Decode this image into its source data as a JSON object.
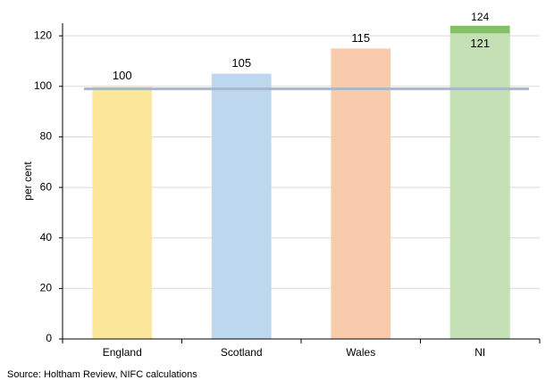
{
  "chart_data": {
    "type": "bar",
    "categories": [
      "England",
      "Scotland",
      "Wales",
      "NI"
    ],
    "values": [
      100,
      105,
      115,
      121
    ],
    "colors": [
      "#fde79b",
      "#bdd7ee",
      "#f8cbad",
      "#c5e0b4"
    ],
    "overlay_values": [
      null,
      null,
      null,
      124
    ],
    "overlay_color": "#84c166",
    "reference_line": 99,
    "reference_color": "#a9b7c9",
    "y_label": "per cent",
    "ylim": [
      0,
      125
    ],
    "yticks": [
      0,
      20,
      40,
      60,
      80,
      100,
      120
    ],
    "grid": true,
    "source": "Source: Holtham Review, NIFC calculations"
  }
}
